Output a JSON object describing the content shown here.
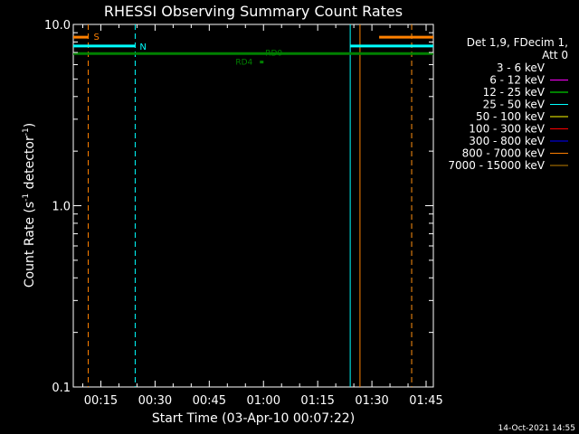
{
  "chart_data": {
    "type": "line",
    "title": "RHESSI Observing Summary Count Rates",
    "xlabel": "Start Time (03-Apr-10 00:07:22)",
    "ylabel_main": "Count Rate (s",
    "ylabel_sup1": "-1",
    "ylabel_mid": " detector",
    "ylabel_sup2": "-1",
    "ylabel_end": ")",
    "yscale": "log",
    "ylim": [
      0.1,
      10.0
    ],
    "xlim_minutes": [
      7.37,
      107
    ],
    "x_ticks": [
      {
        "minutes": 15,
        "label": "00:15"
      },
      {
        "minutes": 30,
        "label": "00:30"
      },
      {
        "minutes": 45,
        "label": "00:45"
      },
      {
        "minutes": 60,
        "label": "01:00"
      },
      {
        "minutes": 75,
        "label": "01:15"
      },
      {
        "minutes": 90,
        "label": "01:30"
      },
      {
        "minutes": 105,
        "label": "01:45"
      }
    ],
    "y_ticks": [
      {
        "value": 0.1,
        "label": "0.1"
      },
      {
        "value": 1.0,
        "label": "1.0"
      },
      {
        "value": 10.0,
        "label": "10.0"
      }
    ],
    "legend": {
      "placement": "right",
      "header": [
        "Det 1,9, FDecim 1,",
        "Att 0"
      ],
      "entries": [
        {
          "label": "3 - 6 keV",
          "color": "#000000"
        },
        {
          "label": "6 - 12 keV",
          "color": "#ff00ff"
        },
        {
          "label": "12 - 25 keV",
          "color": "#00ff00"
        },
        {
          "label": "25 - 50 keV",
          "color": "#00ffff"
        },
        {
          "label": "50 - 100 keV",
          "color": "#ffff00"
        },
        {
          "label": "100 - 300 keV",
          "color": "#ff0000"
        },
        {
          "label": "300 - 800 keV",
          "color": "#0000ff"
        },
        {
          "label": "800 - 7000 keV",
          "color": "#ff8000"
        },
        {
          "label": "7000 - 15000 keV",
          "color": "#c08000"
        }
      ]
    },
    "flag_bars": [
      {
        "label": "S",
        "color": "#ff8000",
        "y": 8.5,
        "segments": [
          [
            7.37,
            11.5
          ],
          [
            92.0,
            107
          ]
        ]
      },
      {
        "label": "N",
        "color": "#00ffff",
        "y": 7.6,
        "segments": [
          [
            7.37,
            24.5
          ],
          [
            84.0,
            107
          ]
        ]
      },
      {
        "label": "RD0",
        "color": "#008000",
        "y": 6.9,
        "segments": [
          [
            7.37,
            107
          ]
        ]
      }
    ],
    "markers": [
      {
        "label": "RD4",
        "color": "#008000",
        "minutes": 59.5,
        "y": 6.2
      }
    ],
    "vlines": [
      {
        "minutes": 11.5,
        "color": "#ff8000",
        "style": "dashed"
      },
      {
        "minutes": 24.5,
        "color": "#00ffff",
        "style": "dashed"
      },
      {
        "minutes": 84.0,
        "color": "#00ffff",
        "style": "solid"
      },
      {
        "minutes": 86.7,
        "color": "#ff8000",
        "style": "solid"
      },
      {
        "minutes": 101.0,
        "color": "#00ffff",
        "style": "dashed"
      },
      {
        "minutes": 101.0,
        "color": "#ff8000",
        "style": "dashed"
      }
    ]
  },
  "footer": {
    "timestamp": "14-Oct-2021 14:55"
  }
}
